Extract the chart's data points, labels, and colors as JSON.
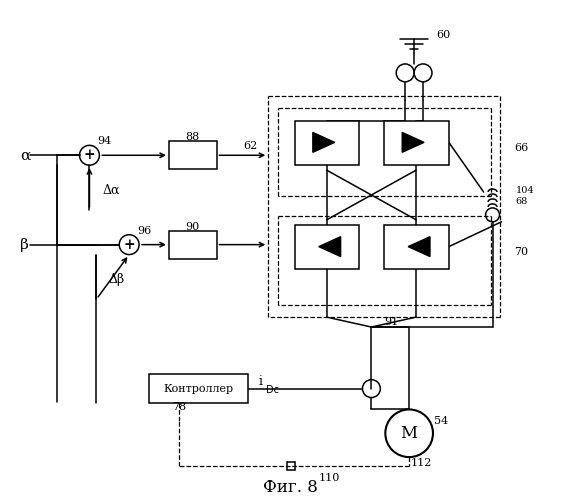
{
  "title": "Фиг. 8",
  "bg": "#ffffff",
  "labels": {
    "alpha": "α",
    "beta": "β",
    "delta_alpha": "Δα",
    "delta_beta": "Δβ",
    "controller": "Контроллер",
    "idc": "i",
    "idc_sub": "Dc",
    "M": "M",
    "n60": "60",
    "n62": "62",
    "n66": "66",
    "n68": "68",
    "n70": "70",
    "n78": "78",
    "n88": "88",
    "n90": "90",
    "n91": "91",
    "n94": "94",
    "n96": "96",
    "n104": "104",
    "n54": "54",
    "n110": "110",
    "n112": "112"
  }
}
